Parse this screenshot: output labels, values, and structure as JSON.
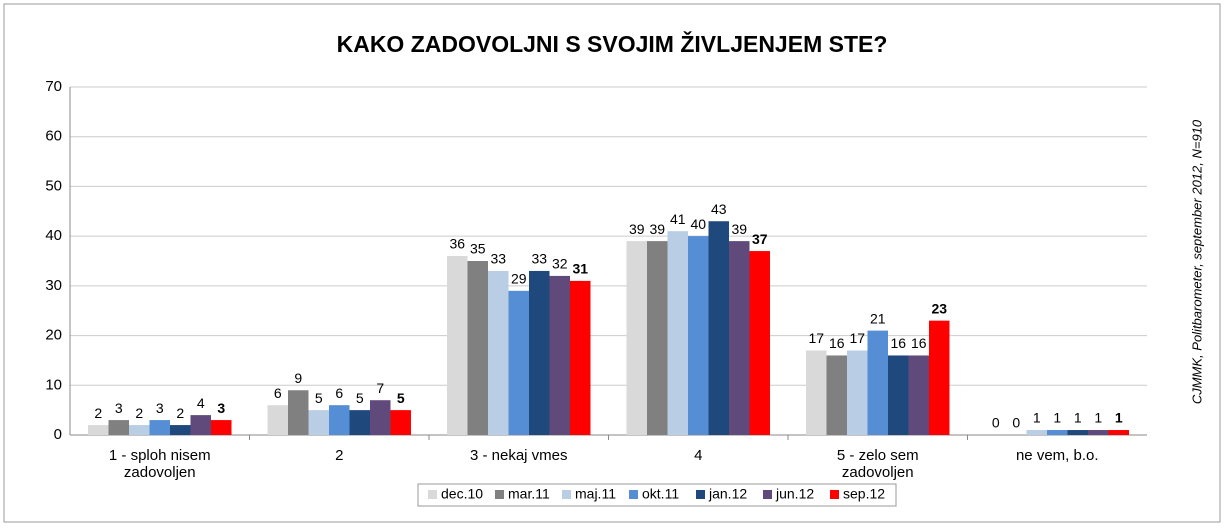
{
  "chart_data": {
    "type": "bar",
    "title": "KAKO ZADOVOLJNI S SVOJIM ŽIVLJENJEM STE?",
    "source": "CJMMK, Politbarometer, september 2012, N=910",
    "categories": [
      "1 - sploh nisem zadovoljen",
      "2",
      "3 - nekaj vmes",
      "4",
      "5 - zelo sem zadovoljen",
      "ne vem, b.o."
    ],
    "series": [
      {
        "name": "dec.10",
        "color": "#d9d9d9",
        "values": [
          2,
          6,
          36,
          39,
          17,
          0
        ]
      },
      {
        "name": "mar.11",
        "color": "#808080",
        "values": [
          3,
          9,
          35,
          39,
          16,
          0
        ]
      },
      {
        "name": "maj.11",
        "color": "#b9cde5",
        "values": [
          2,
          5,
          33,
          41,
          17,
          1
        ]
      },
      {
        "name": "okt.11",
        "color": "#558ed5",
        "values": [
          3,
          6,
          29,
          40,
          21,
          1
        ]
      },
      {
        "name": "jan.12",
        "color": "#1f497d",
        "values": [
          2,
          5,
          33,
          43,
          16,
          1
        ]
      },
      {
        "name": "jun.12",
        "color": "#604a7b",
        "values": [
          4,
          7,
          32,
          39,
          16,
          1
        ]
      },
      {
        "name": "sep.12",
        "color": "#ff0000",
        "values": [
          3,
          5,
          31,
          37,
          23,
          1
        ]
      }
    ],
    "ylim": [
      0,
      70
    ],
    "yticks": [
      0,
      10,
      20,
      30,
      40,
      50,
      60,
      70
    ],
    "grid": true,
    "legend": "bottom"
  }
}
